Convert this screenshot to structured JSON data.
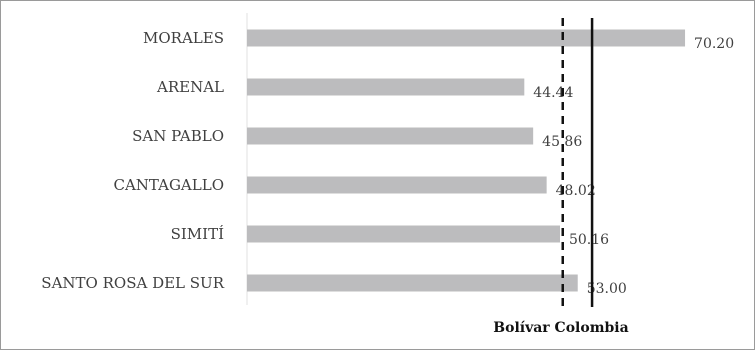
{
  "chart_data": {
    "type": "bar",
    "orientation": "horizontal",
    "categories": [
      "MORALES",
      "ARENAL",
      "SAN PABLO",
      "CANTAGALLO",
      "SIMITÍ",
      "SANTO ROSA DEL SUR"
    ],
    "values": [
      70.2,
      44.44,
      45.86,
      48.02,
      50.16,
      53.0
    ],
    "value_labels": [
      "70.20",
      "44.44",
      "45.86",
      "48.02",
      "50.16",
      "53.00"
    ],
    "bar_color": "#bcbcbe",
    "reference_lines": [
      {
        "name": "Bolívar",
        "value": 50.6,
        "style": "dashed",
        "color": "#111111"
      },
      {
        "name": "Colombia",
        "value": 55.3,
        "style": "solid",
        "color": "#111111"
      }
    ],
    "legend_text": "Bolívar Colombia",
    "xlim": [
      0,
      75
    ],
    "grid": false,
    "legend_position": "bottom"
  }
}
